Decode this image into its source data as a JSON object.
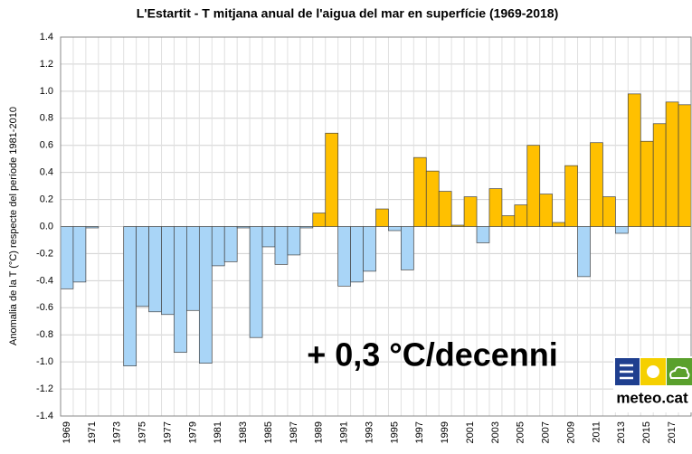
{
  "chart_data": {
    "type": "bar",
    "title": "L'Estartit - T mitjana anual de l'aigua del mar en superfície (1969-2018)",
    "y_label": "Anomalia de la T (°C) respecte del període 1981-2010",
    "annotation": "+ 0,3 °C/decenni",
    "categories": [
      "1969",
      null,
      "1971",
      null,
      "1973",
      null,
      "1975",
      null,
      "1977",
      null,
      "1979",
      null,
      "1981",
      null,
      "1983",
      null,
      "1985",
      null,
      "1987",
      null,
      "1989",
      null,
      "1991",
      null,
      "1993",
      null,
      "1995",
      null,
      "1997",
      null,
      "1999",
      null,
      "2001",
      null,
      "2003",
      null,
      "2005",
      null,
      "2007",
      null,
      "2009",
      null,
      "2011",
      null,
      "2013",
      null,
      "2015",
      null,
      "2017",
      null
    ],
    "values": [
      -0.46,
      -0.41,
      -0.01,
      0,
      0,
      -1.03,
      -0.59,
      -0.63,
      -0.65,
      -0.93,
      -0.62,
      -1.01,
      -0.29,
      -0.26,
      -0.01,
      -0.82,
      -0.15,
      -0.28,
      -0.21,
      -0.01,
      0.1,
      0.69,
      -0.44,
      -0.41,
      -0.33,
      0.13,
      -0.03,
      -0.32,
      0.51,
      0.41,
      0.26,
      0.01,
      0.22,
      -0.12,
      0.28,
      0.08,
      0.16,
      0.6,
      0.24,
      0.03,
      0.45,
      -0.37,
      0.62,
      0.22,
      -0.05,
      0.98,
      0.63,
      0.76,
      0.92,
      0.9
    ],
    "positive_color": "#ffc000",
    "negative_color": "#a9d5f7",
    "ylim": [
      -1.4,
      1.4
    ],
    "yticks": [
      -1.4,
      -1.2,
      {
        "value": -1,
        "label": "-1.0"
      },
      -0.8,
      -0.6,
      -0.4,
      -0.2,
      {
        "value": 0,
        "label": "0.0"
      },
      0.2,
      0.4,
      0.6,
      0.8,
      {
        "value": 1,
        "label": "1.0"
      },
      1.2,
      1.4
    ],
    "grid": true
  },
  "logo": {
    "text": "meteo.cat"
  }
}
